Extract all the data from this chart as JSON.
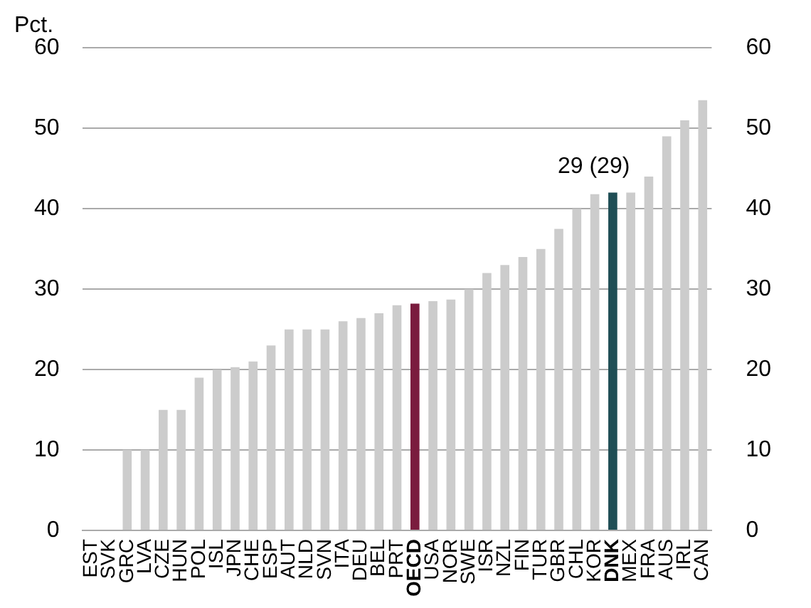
{
  "chart_data": {
    "type": "bar",
    "ylabel": "Pct.",
    "categories": [
      "EST",
      "SVK",
      "GRC",
      "LVA",
      "CZE",
      "HUN",
      "POL",
      "ISL",
      "JPN",
      "CHE",
      "ESP",
      "AUT",
      "NLD",
      "SVN",
      "ITA",
      "DEU",
      "BEL",
      "PRT",
      "OECD",
      "USA",
      "NOR",
      "SWE",
      "ISR",
      "NZL",
      "FIN",
      "TUR",
      "GBR",
      "CHL",
      "KOR",
      "DNK",
      "MEX",
      "FRA",
      "AUS",
      "IRL",
      "CAN"
    ],
    "values": [
      0,
      0,
      10,
      10,
      15,
      15,
      19,
      20,
      20.3,
      21,
      23,
      25,
      25,
      25,
      26,
      26.4,
      27,
      28,
      28.2,
      28.5,
      28.7,
      30,
      32,
      33,
      34,
      35,
      37.5,
      40,
      41.8,
      42,
      42,
      44,
      49,
      51,
      53.5
    ],
    "colors": [
      "#cccccc",
      "#cccccc",
      "#cccccc",
      "#cccccc",
      "#cccccc",
      "#cccccc",
      "#cccccc",
      "#cccccc",
      "#cccccc",
      "#cccccc",
      "#cccccc",
      "#cccccc",
      "#cccccc",
      "#cccccc",
      "#cccccc",
      "#cccccc",
      "#cccccc",
      "#cccccc",
      "#7a1c3e",
      "#cccccc",
      "#cccccc",
      "#cccccc",
      "#cccccc",
      "#cccccc",
      "#cccccc",
      "#cccccc",
      "#cccccc",
      "#cccccc",
      "#cccccc",
      "#1f4e55",
      "#cccccc",
      "#cccccc",
      "#cccccc",
      "#cccccc",
      "#cccccc"
    ],
    "ylim": [
      0,
      60
    ],
    "yticks": [
      0,
      10,
      20,
      30,
      40,
      50,
      60
    ],
    "y2lim": [
      0,
      60
    ],
    "y2ticks": [
      0,
      10,
      20,
      30,
      40,
      50,
      60
    ],
    "grid": "y",
    "legend": false,
    "annotations": [
      {
        "text": "29 (29)",
        "x": "DNK",
        "y": 42
      }
    ]
  }
}
